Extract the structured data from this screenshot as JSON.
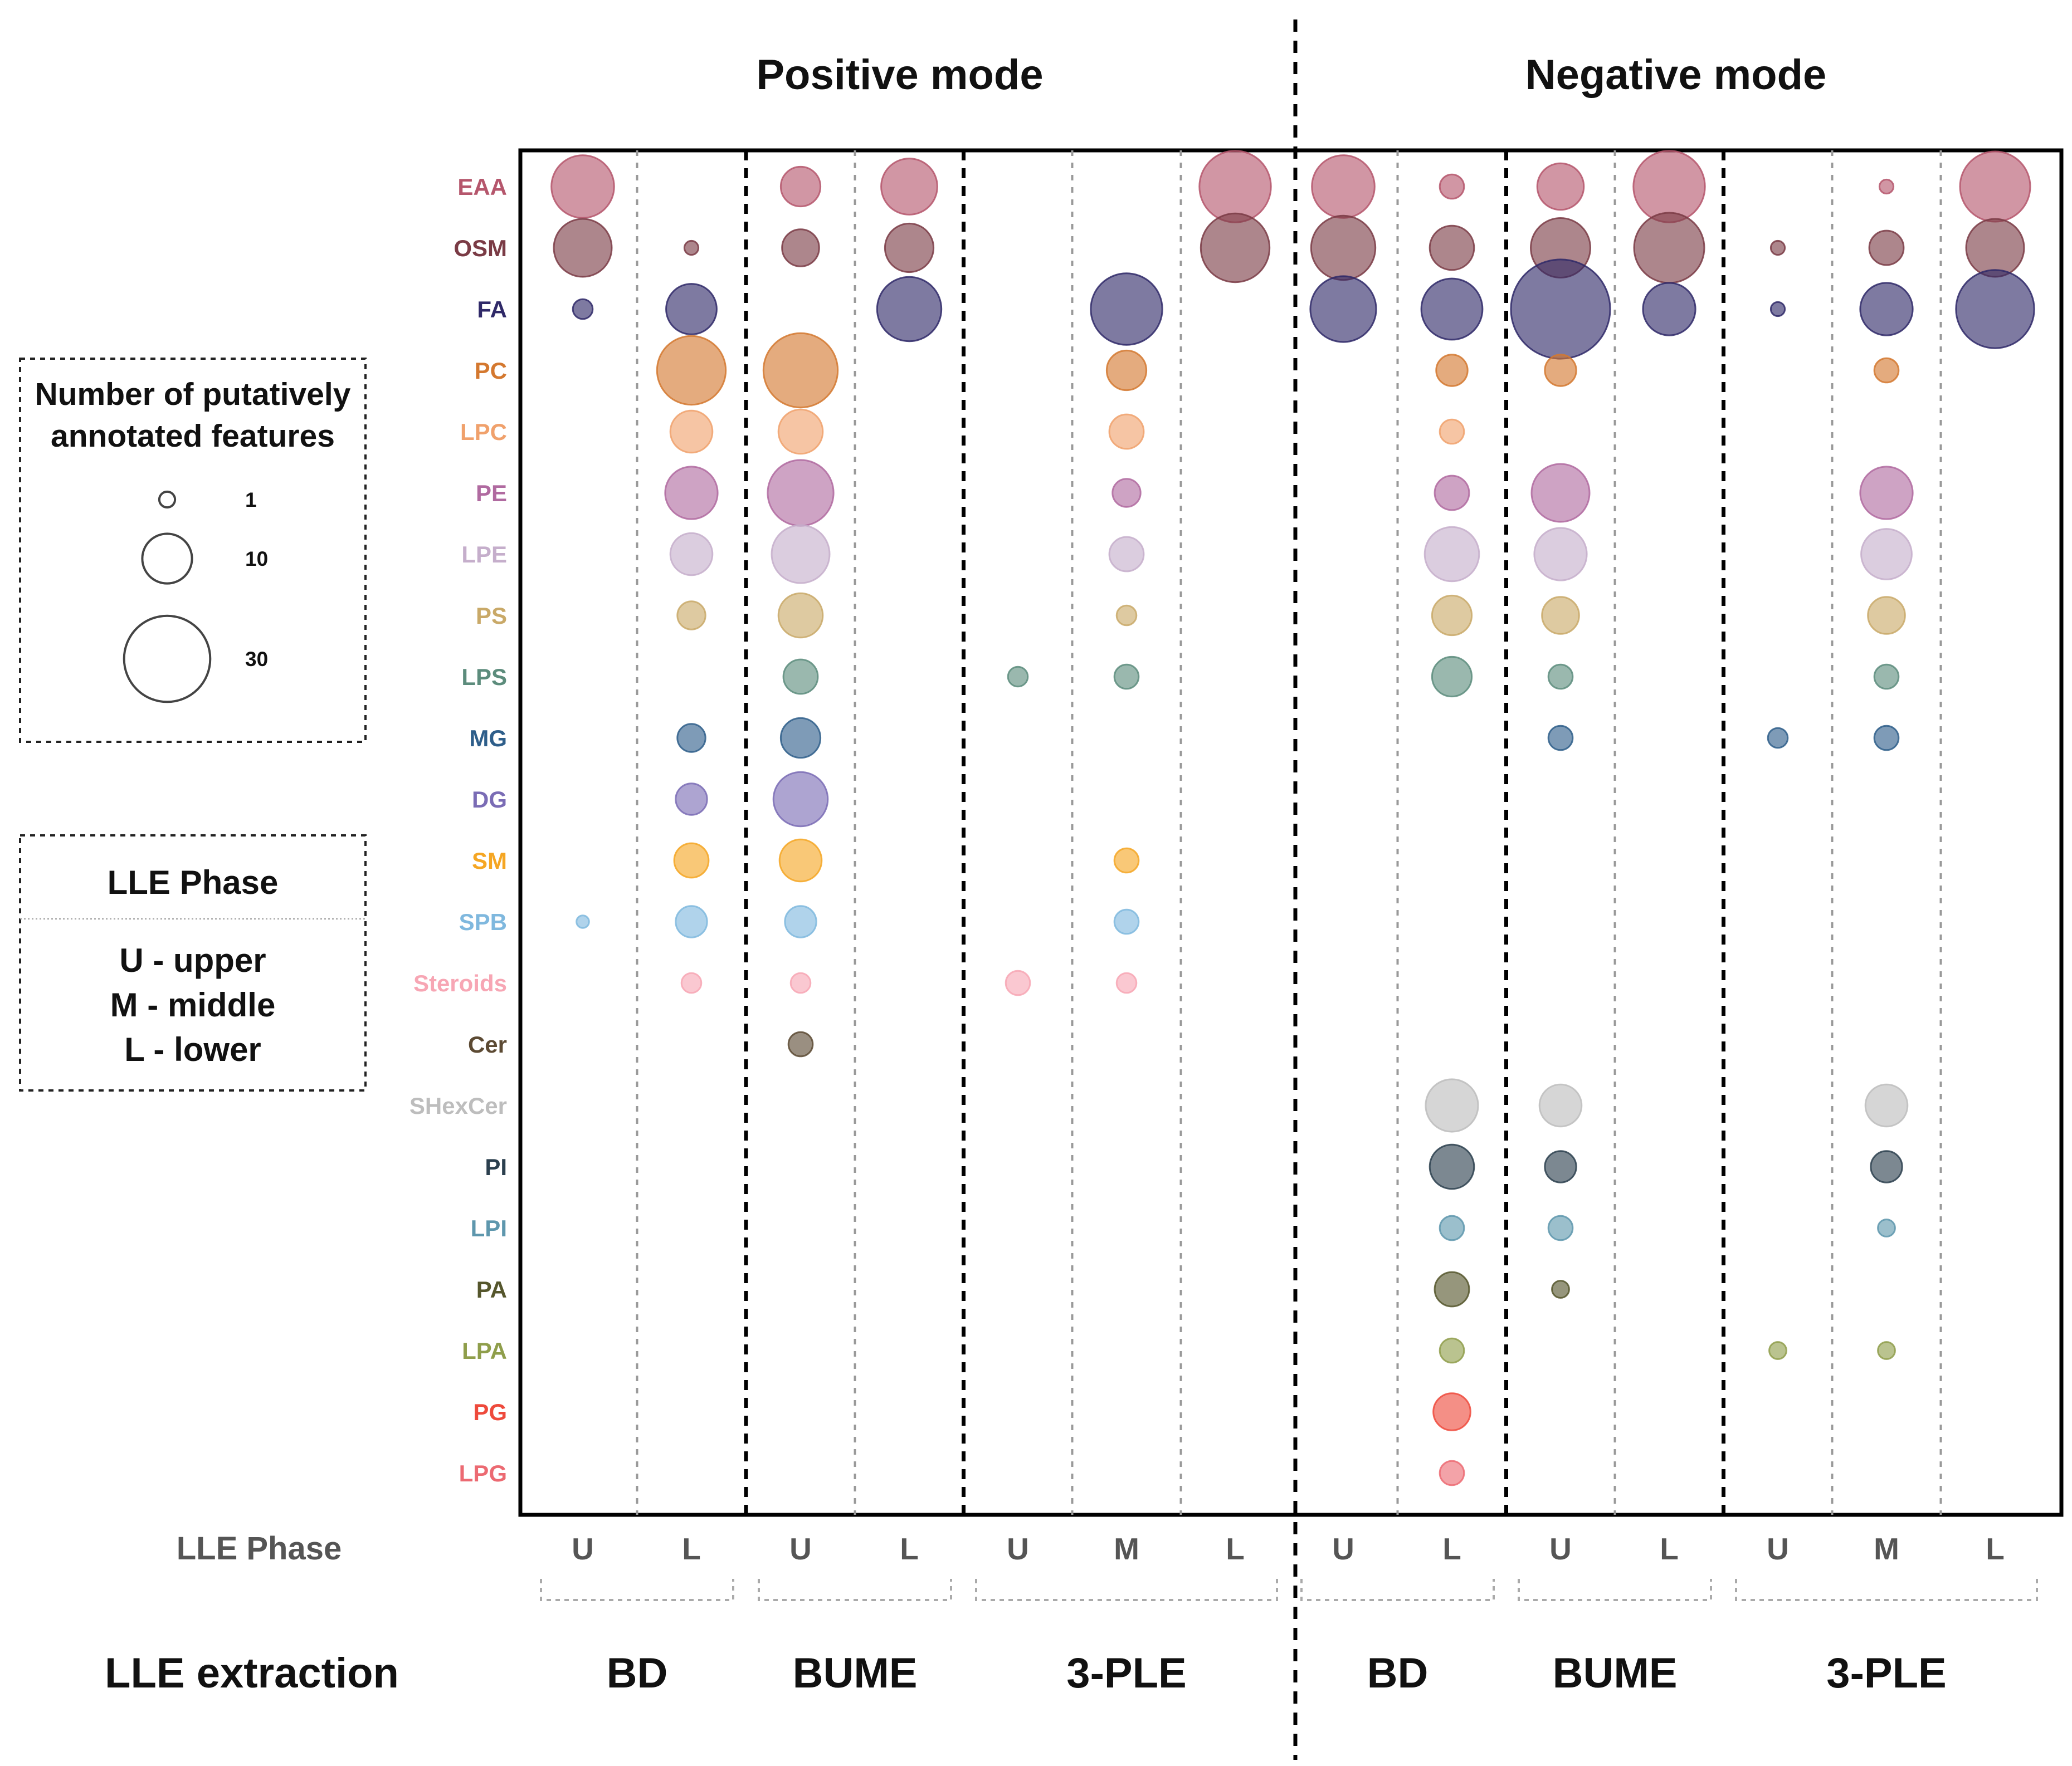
{
  "chart_data": {
    "type": "bubble",
    "title_left": "Positive mode",
    "title_right": "Negative mode",
    "xaxis_label": "LLE Phase",
    "group_axis_label": "LLE extraction",
    "columns": [
      {
        "mode": "positive",
        "method": "BD",
        "phase": "U"
      },
      {
        "mode": "positive",
        "method": "BD",
        "phase": "L"
      },
      {
        "mode": "positive",
        "method": "BUME",
        "phase": "U"
      },
      {
        "mode": "positive",
        "method": "BUME",
        "phase": "L"
      },
      {
        "mode": "positive",
        "method": "3-PLE",
        "phase": "U"
      },
      {
        "mode": "positive",
        "method": "3-PLE",
        "phase": "M"
      },
      {
        "mode": "positive",
        "method": "3-PLE",
        "phase": "L"
      },
      {
        "mode": "negative",
        "method": "BD",
        "phase": "U"
      },
      {
        "mode": "negative",
        "method": "BD",
        "phase": "L"
      },
      {
        "mode": "negative",
        "method": "BUME",
        "phase": "U"
      },
      {
        "mode": "negative",
        "method": "BUME",
        "phase": "L"
      },
      {
        "mode": "negative",
        "method": "3-PLE",
        "phase": "U"
      },
      {
        "mode": "negative",
        "method": "3-PLE",
        "phase": "M"
      },
      {
        "mode": "negative",
        "method": "3-PLE",
        "phase": "L"
      }
    ],
    "groups": [
      {
        "label": "BD",
        "from": 0,
        "to": 1
      },
      {
        "label": "BUME",
        "from": 2,
        "to": 3
      },
      {
        "label": "3-PLE",
        "from": 4,
        "to": 6
      },
      {
        "label": "BD",
        "from": 7,
        "to": 8
      },
      {
        "label": "BUME",
        "from": 9,
        "to": 10
      },
      {
        "label": "3-PLE",
        "from": 11,
        "to": 13
      }
    ],
    "lipid_classes": [
      {
        "name": "EAA",
        "color": "#b5566c",
        "counts": [
          20,
          0,
          8,
          16,
          0,
          0,
          26,
          20,
          3,
          11,
          26,
          0,
          1,
          25
        ]
      },
      {
        "name": "OSM",
        "color": "#7a3b45",
        "counts": [
          17,
          1,
          7,
          12,
          0,
          0,
          24,
          21,
          10,
          18,
          25,
          1,
          6,
          17
        ]
      },
      {
        "name": "FA",
        "color": "#2f2968",
        "counts": [
          2,
          13,
          0,
          21,
          0,
          26,
          0,
          22,
          19,
          50,
          14,
          1,
          14,
          31
        ]
      },
      {
        "name": "PC",
        "color": "#d4782f",
        "counts": 0,
        "countsList": [
          0,
          24,
          28,
          0,
          0,
          8,
          0,
          0,
          5,
          5,
          0,
          0,
          3,
          0
        ]
      },
      {
        "name": "LPC",
        "color": "#f0a16c",
        "counts": 0,
        "countsList": [
          0,
          9,
          10,
          0,
          0,
          6,
          0,
          0,
          3,
          0,
          0,
          0,
          0,
          0
        ]
      },
      {
        "name": "PE",
        "color": "#b06aa0",
        "counts": 0,
        "countsList": [
          0,
          14,
          22,
          0,
          0,
          4,
          0,
          0,
          6,
          17,
          0,
          0,
          14,
          0
        ]
      },
      {
        "name": "LPE",
        "color": "#c5aecb",
        "counts": 0,
        "countsList": [
          0,
          9,
          17,
          0,
          0,
          6,
          0,
          0,
          15,
          14,
          0,
          0,
          13,
          0
        ]
      },
      {
        "name": "PS",
        "color": "#c9a968",
        "counts": 0,
        "countsList": [
          0,
          4,
          10,
          0,
          0,
          2,
          0,
          0,
          8,
          7,
          0,
          0,
          7,
          0
        ]
      },
      {
        "name": "LPS",
        "color": "#5c8c7c",
        "counts": 0,
        "countsList": [
          0,
          0,
          6,
          0,
          2,
          3,
          0,
          0,
          8,
          3,
          0,
          0,
          3,
          0
        ]
      },
      {
        "name": "MG",
        "color": "#2e5e8a",
        "counts": 0,
        "countsList": [
          0,
          4,
          8,
          0,
          0,
          0,
          0,
          0,
          0,
          3,
          0,
          2,
          3,
          0
        ]
      },
      {
        "name": "DG",
        "color": "#7a6cb5",
        "counts": 0,
        "countsList": [
          0,
          5,
          15,
          0,
          0,
          0,
          0,
          0,
          0,
          0,
          0,
          0,
          0,
          0
        ]
      },
      {
        "name": "SM",
        "color": "#f5a623",
        "counts": 0,
        "countsList": [
          0,
          6,
          9,
          0,
          0,
          3,
          0,
          0,
          0,
          0,
          0,
          0,
          0,
          0
        ]
      },
      {
        "name": "SPB",
        "color": "#7fb8de",
        "counts": 0,
        "countsList": [
          0.8,
          5,
          5,
          0,
          0,
          3,
          0,
          0,
          0,
          0,
          0,
          0,
          0,
          0
        ]
      },
      {
        "name": "Steroids",
        "color": "#f7a6b4",
        "counts": 0,
        "countsList": [
          0,
          2,
          2,
          0,
          3,
          2,
          0,
          0,
          0,
          0,
          0,
          0,
          0,
          0
        ]
      },
      {
        "name": "Cer",
        "color": "#5c4a33",
        "counts": 0,
        "countsList": [
          0,
          0,
          3,
          0,
          0,
          0,
          0,
          0,
          0,
          0,
          0,
          0,
          0,
          0
        ]
      },
      {
        "name": "SHexCer",
        "color": "#bdbdbd",
        "counts": 0,
        "countsList": [
          0,
          0,
          0,
          0,
          0,
          0,
          0,
          0,
          14,
          9,
          0,
          0,
          9,
          0
        ]
      },
      {
        "name": "PI",
        "color": "#2b3f4e",
        "counts": 0,
        "countsList": [
          0,
          0,
          0,
          0,
          0,
          0,
          0,
          0,
          10,
          5,
          0,
          0,
          5,
          0
        ]
      },
      {
        "name": "LPI",
        "color": "#5e97ad",
        "counts": 0,
        "countsList": [
          0,
          0,
          0,
          0,
          0,
          0,
          0,
          0,
          3,
          3,
          0,
          0,
          1.5,
          0
        ]
      },
      {
        "name": "PA",
        "color": "#55562c",
        "counts": 0,
        "countsList": [
          0,
          0,
          0,
          0,
          0,
          0,
          0,
          0,
          6,
          1.5,
          0,
          0,
          0,
          0
        ]
      },
      {
        "name": "LPA",
        "color": "#8f9e4b",
        "counts": 0,
        "countsList": [
          0,
          0,
          0,
          0,
          0,
          0,
          0,
          0,
          3,
          0,
          0,
          1.5,
          1.5,
          0
        ]
      },
      {
        "name": "PG",
        "color": "#ee4a3c",
        "counts": 0,
        "countsList": [
          0,
          0,
          0,
          0,
          0,
          0,
          0,
          0,
          7,
          0,
          0,
          0,
          0,
          0
        ]
      },
      {
        "name": "LPG",
        "color": "#ec6a72",
        "counts": 0,
        "countsList": [
          0,
          0,
          0,
          0,
          0,
          0,
          0,
          0,
          3,
          0,
          0,
          0,
          0,
          0
        ]
      }
    ],
    "size_legend": {
      "title_line1": "Number of putatively",
      "title_line2": "annotated features",
      "items": [
        {
          "label": "1",
          "value": 1
        },
        {
          "label": "10",
          "value": 10
        },
        {
          "label": "30",
          "value": 30
        }
      ]
    },
    "phase_legend": {
      "title": "LLE Phase",
      "lines": [
        "U - upper",
        "M - middle",
        "L - lower"
      ]
    }
  }
}
